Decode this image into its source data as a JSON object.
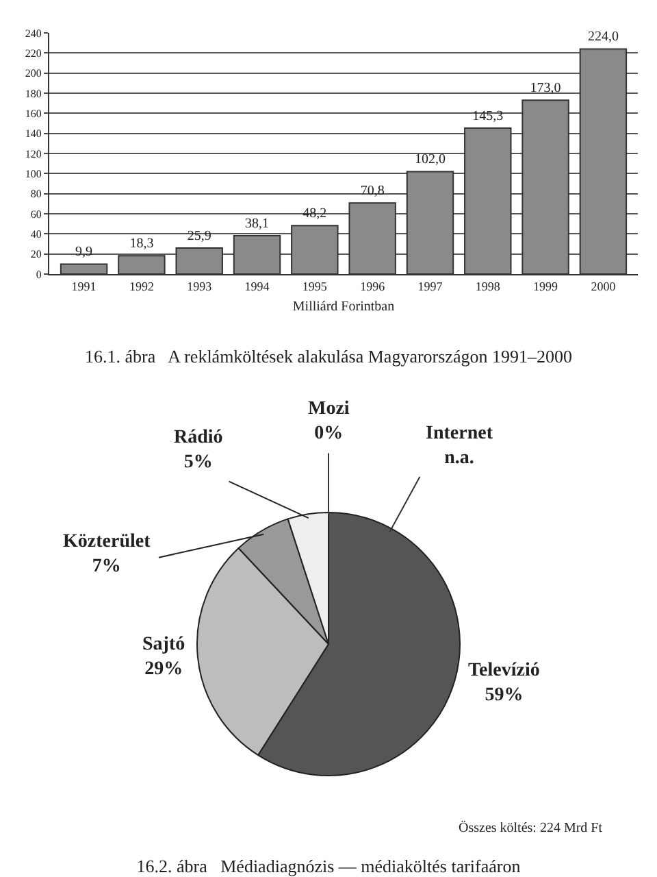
{
  "chart_data": [
    {
      "type": "bar",
      "title": "16.1. ábra   A reklámköltések alakulása Magyarországon 1991–2000",
      "xlabel": "Milliárd Forintban",
      "categories": [
        "1991",
        "1992",
        "1993",
        "1994",
        "1995",
        "1996",
        "1997",
        "1998",
        "1999",
        "2000"
      ],
      "values": [
        9.9,
        18.3,
        25.9,
        38.1,
        48.2,
        70.8,
        102.0,
        145.3,
        173.0,
        224.0
      ],
      "value_labels": [
        "9,9",
        "18,3",
        "25,9",
        "38,1",
        "48,2",
        "70,8",
        "102,0",
        "145,3",
        "173,0",
        "224,0"
      ],
      "color": "#8a8a8a",
      "ylim": [
        0,
        240
      ],
      "yticks": [
        0,
        20,
        40,
        60,
        80,
        100,
        120,
        140,
        160,
        180,
        200,
        220,
        240
      ],
      "grid": "y"
    },
    {
      "type": "pie",
      "title": "16.2. ábra   Médiadiagnózis — médiaköltés tarifaáron",
      "categories": [
        "Televízió",
        "Sajtó",
        "Közterület",
        "Rádió",
        "Mozi",
        "Internet"
      ],
      "values": [
        59,
        29,
        7,
        5,
        0,
        null
      ],
      "value_labels": [
        "59%",
        "29%",
        "7%",
        "5%",
        "0%",
        "n.a."
      ],
      "colors": [
        "#555555",
        "#bdbdbd",
        "#999999",
        "#eeeeee",
        "#333333",
        "#333333"
      ],
      "annotations": [
        "Összes költés: 224 Mrd Ft"
      ]
    }
  ]
}
